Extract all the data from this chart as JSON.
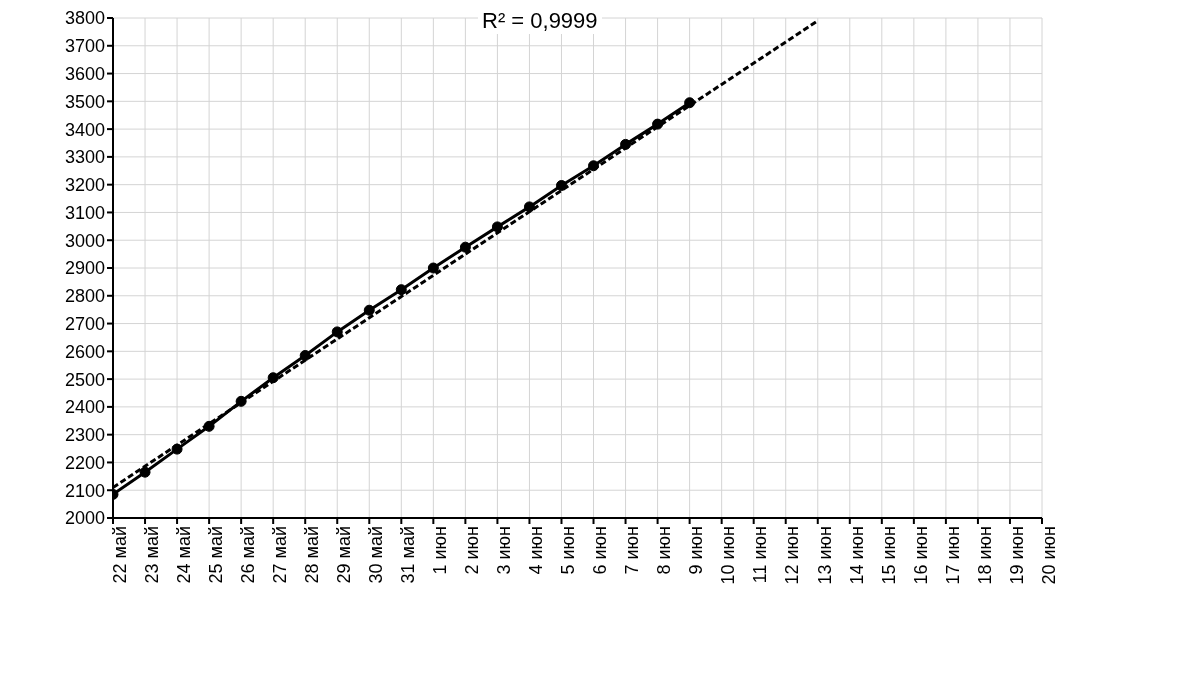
{
  "chart_data": {
    "type": "line",
    "categories": [
      "22 май",
      "23 май",
      "24 май",
      "25 май",
      "26 май",
      "27 май",
      "28 май",
      "29 май",
      "30 май",
      "31 май",
      "1 июн",
      "2 июн",
      "3 июн",
      "4 июн",
      "5 июн",
      "6 июн",
      "7 июн",
      "8 июн",
      "9 июн",
      "10 июн",
      "11 июн",
      "12 июн",
      "13 июн",
      "14 июн",
      "15 июн",
      "16 июн",
      "17 июн",
      "18 июн",
      "19 июн",
      "20 июн"
    ],
    "series": [
      {
        "color": "#000000",
        "marker": "circle",
        "line_style": "solid",
        "values": [
          2085,
          2165,
          2248,
          2330,
          2420,
          2505,
          2585,
          2670,
          2748,
          2822,
          2900,
          2975,
          3048,
          3120,
          3197,
          3268,
          3345,
          3418,
          3495,
          null,
          null,
          null,
          null,
          null,
          null,
          null,
          null,
          null,
          null,
          null
        ]
      },
      {
        "type": "line",
        "color": "#000000",
        "marker": "none",
        "line_style": "dashed",
        "values": [
          2110,
          null,
          null,
          null,
          null,
          null,
          null,
          null,
          null,
          null,
          null,
          null,
          null,
          null,
          null,
          null,
          null,
          null,
          null,
          null,
          null,
          null,
          3790,
          null,
          null,
          null,
          null,
          null,
          null,
          null
        ]
      }
    ],
    "ylim": [
      2000,
      3800
    ],
    "yticks": [
      2000,
      2100,
      2200,
      2300,
      2400,
      2500,
      2600,
      2700,
      2800,
      2900,
      3000,
      3100,
      3200,
      3300,
      3400,
      3500,
      3600,
      3700,
      3800
    ],
    "grid": true,
    "annotations": [
      "R² = 0,9999"
    ]
  }
}
